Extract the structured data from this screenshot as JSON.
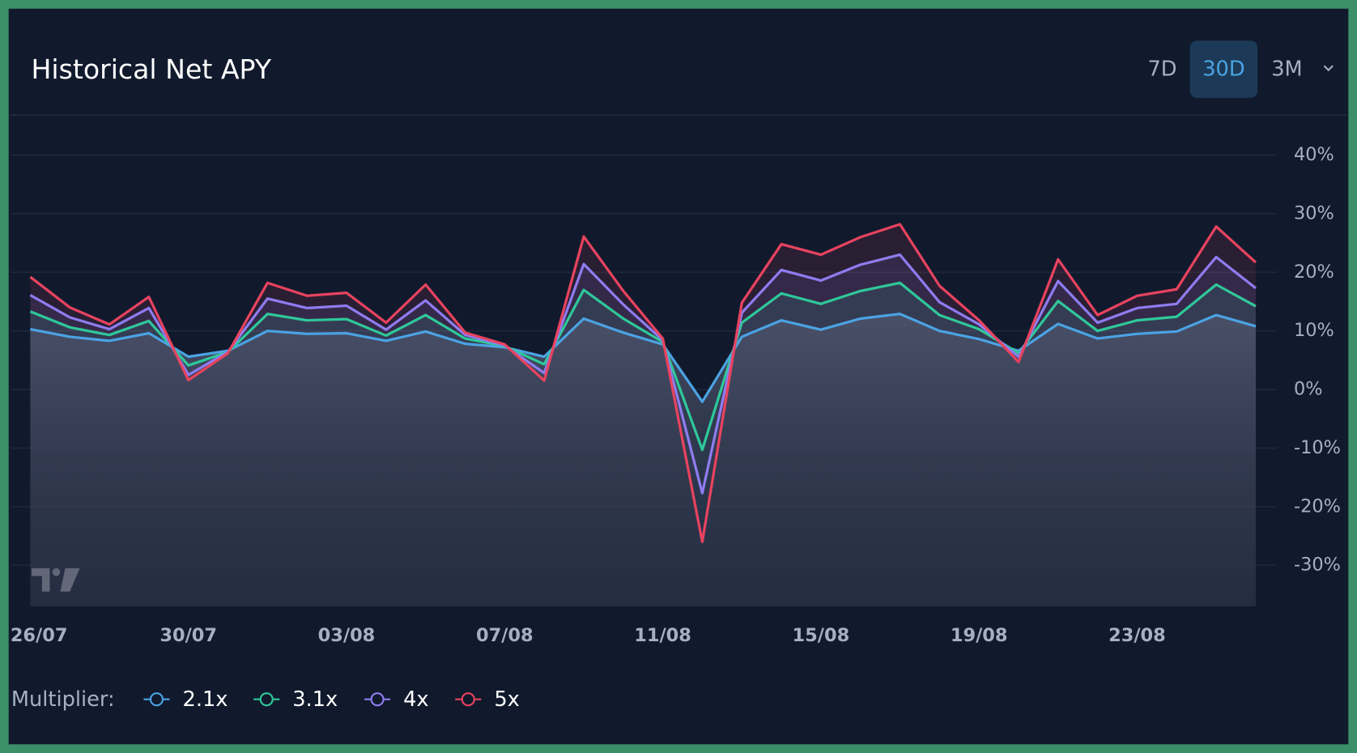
{
  "header": {
    "title": "Historical Net APY",
    "ranges": [
      "7D",
      "30D",
      "3M"
    ],
    "active": "30D"
  },
  "chart_data": {
    "type": "line",
    "categories": [
      "26/07",
      null,
      null,
      null,
      "30/07",
      null,
      null,
      null,
      "03/08",
      null,
      null,
      null,
      "07/08",
      null,
      null,
      null,
      "11/08",
      null,
      null,
      null,
      "15/08",
      null,
      null,
      null,
      "19/08",
      null,
      null,
      null,
      "23/08",
      null,
      null,
      null
    ],
    "ylim": [
      -37,
      41
    ],
    "yticks": [
      {
        "value": -30,
        "label": "-30%"
      },
      {
        "value": -20,
        "label": "-20%"
      },
      {
        "value": -10,
        "label": "-10%"
      },
      {
        "value": 0,
        "label": "0%"
      },
      {
        "value": 10,
        "label": "10%"
      },
      {
        "value": 20,
        "label": "20%"
      },
      {
        "value": 30,
        "label": "30%"
      },
      {
        "value": 40,
        "label": "40%"
      }
    ],
    "grid": true,
    "legend_title": "Multiplier:",
    "series": [
      {
        "name": "2.1x",
        "color": "#4ba3e3",
        "values": [
          10.3,
          9,
          8.3,
          9.6,
          5.6,
          6.6,
          10,
          9.5,
          9.6,
          8.3,
          9.9,
          7.8,
          7.2,
          5.6,
          12.1,
          9.7,
          7.7,
          -2.1,
          9,
          11.8,
          10.2,
          12.1,
          12.9,
          10,
          8.6,
          6.6,
          11.2,
          8.7,
          9.5,
          9.9,
          12.7,
          10.8
        ]
      },
      {
        "name": "3.1x",
        "color": "#2fc89a",
        "values": [
          13.3,
          10.6,
          9.3,
          11.7,
          4.1,
          6.4,
          12.9,
          11.8,
          12,
          9.2,
          12.7,
          8.7,
          7.4,
          4.3,
          17,
          12.1,
          8.1,
          -10.3,
          11.4,
          16.4,
          14.6,
          16.8,
          18.2,
          12.7,
          10.3,
          6.2,
          15.1,
          10,
          11.8,
          12.4,
          17.9,
          14.2
        ]
      },
      {
        "name": "4x",
        "color": "#8f7cf0",
        "values": [
          16.1,
          12.3,
          10.3,
          13.9,
          2.5,
          6.4,
          15.5,
          13.9,
          14.3,
          10.2,
          15.2,
          9.3,
          7.5,
          2.8,
          21.4,
          14.5,
          8.4,
          -17.7,
          13.1,
          20.4,
          18.6,
          21.3,
          23,
          14.9,
          11.1,
          5.6,
          18.5,
          11.4,
          13.9,
          14.6,
          22.6,
          17.3
        ]
      },
      {
        "name": "5x",
        "color": "#e8435f",
        "values": [
          19.2,
          14,
          11.1,
          15.8,
          1.6,
          6.2,
          18.2,
          16,
          16.5,
          11.4,
          17.9,
          9.7,
          7.7,
          1.5,
          26.1,
          16.8,
          8.7,
          -26,
          14.8,
          24.8,
          23,
          26,
          28.2,
          17.7,
          11.8,
          4.7,
          22.2,
          12.7,
          16,
          17.1,
          27.8,
          21.7
        ]
      }
    ]
  }
}
